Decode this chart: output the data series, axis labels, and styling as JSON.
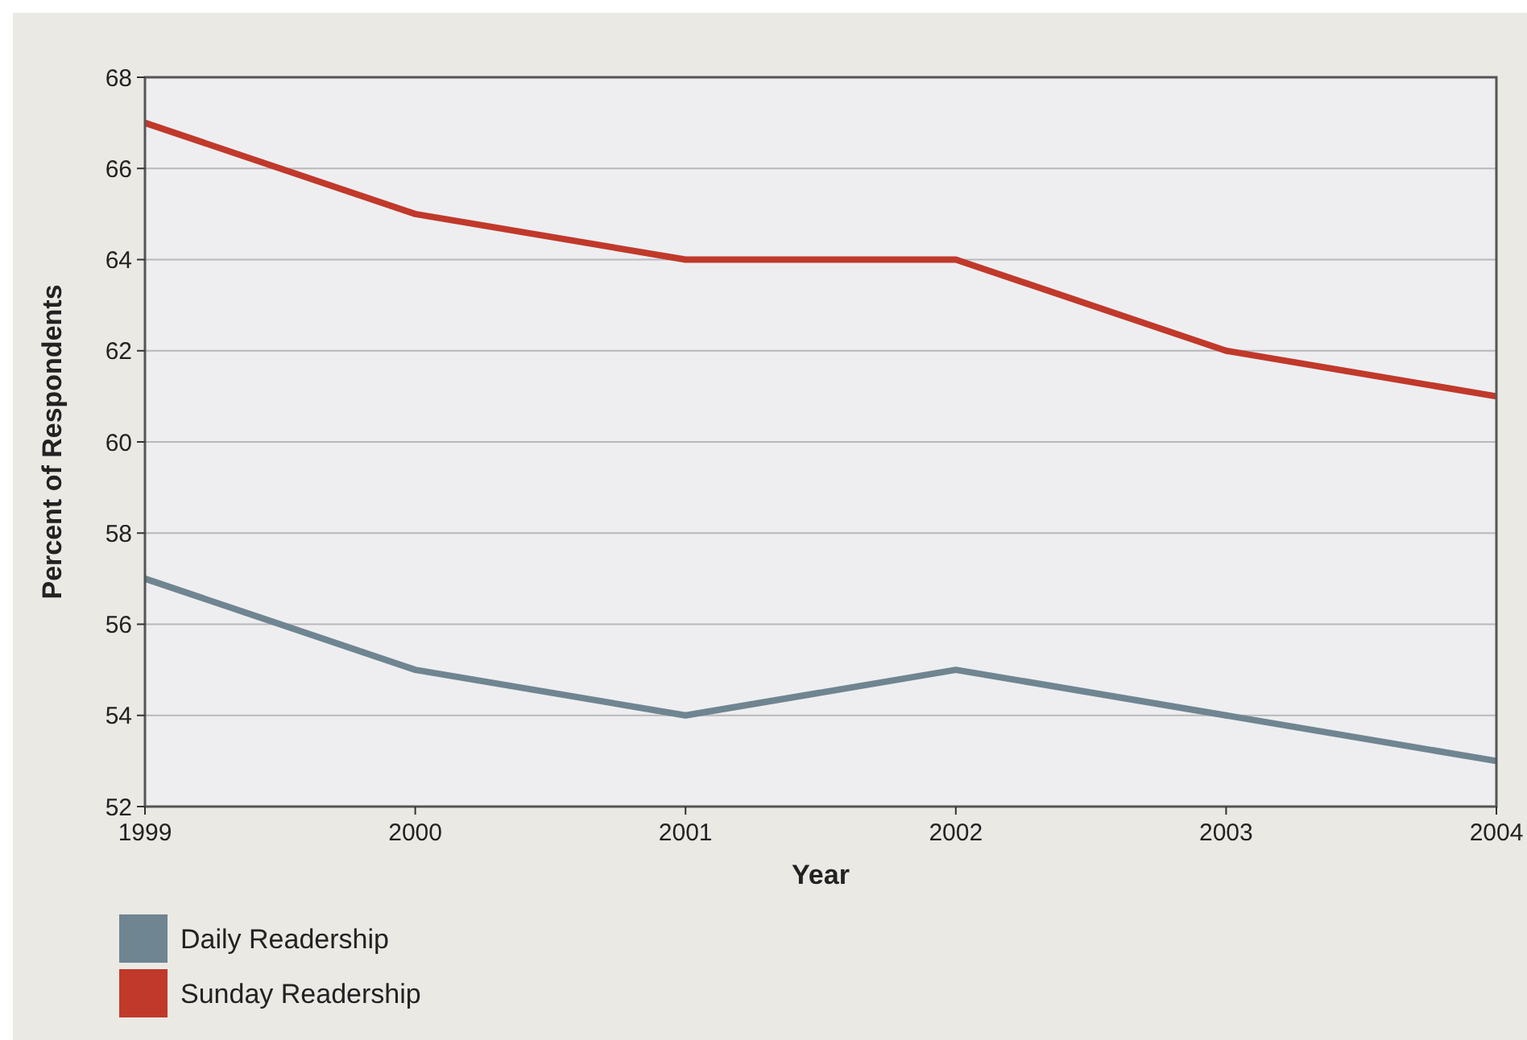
{
  "chart_data": {
    "type": "line",
    "xlabel": "Year",
    "ylabel": "Percent of Respondents",
    "x": [
      1999,
      2000,
      2001,
      2002,
      2003,
      2004
    ],
    "xlim": [
      1999,
      2004
    ],
    "xticks": [
      1999,
      2000,
      2001,
      2002,
      2003,
      2004
    ],
    "ylim": [
      52,
      68
    ],
    "yticks": [
      52,
      54,
      56,
      58,
      60,
      62,
      64,
      66,
      68
    ],
    "grid": "y",
    "legend": "bottom",
    "marker": "none",
    "line_style": "solid",
    "series": [
      {
        "name": "Daily Readership",
        "color": "#6f8591",
        "values": [
          57,
          55,
          54,
          55,
          54,
          53
        ]
      },
      {
        "name": "Sunday Readership",
        "color": "#c0392b",
        "values": [
          67,
          65,
          64,
          64,
          62,
          61
        ]
      }
    ]
  }
}
